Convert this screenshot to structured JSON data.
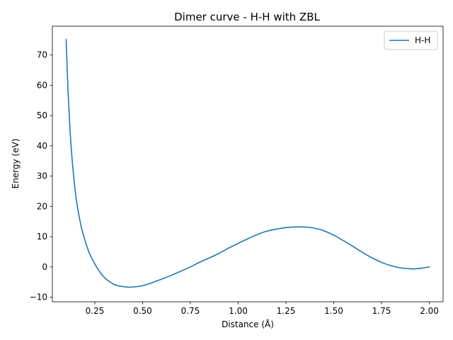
{
  "chart_data": {
    "type": "line",
    "title": "Dimer curve - H-H with ZBL",
    "xlabel": "Distance (Å)",
    "ylabel": "Energy (eV)",
    "xlim": [
      0.028,
      2.072
    ],
    "ylim": [
      -11.5,
      79.5
    ],
    "xticks": [
      0.25,
      0.5,
      0.75,
      1.0,
      1.25,
      1.5,
      1.75,
      2.0
    ],
    "xtick_labels": [
      "0.25",
      "0.50",
      "0.75",
      "1.00",
      "1.25",
      "1.50",
      "1.75",
      "2.00"
    ],
    "yticks": [
      -10,
      0,
      10,
      20,
      30,
      40,
      50,
      60,
      70
    ],
    "ytick_labels": [
      "−10",
      "0",
      "10",
      "20",
      "30",
      "40",
      "50",
      "60",
      "70"
    ],
    "grid": false,
    "legend": "top-right",
    "series": [
      {
        "name": "H-H",
        "color": "#1f77b4",
        "x": [
          0.1,
          0.11,
          0.12,
          0.13,
          0.14,
          0.15,
          0.16,
          0.18,
          0.2,
          0.22,
          0.25,
          0.28,
          0.3,
          0.33,
          0.36,
          0.4,
          0.43,
          0.47,
          0.5,
          0.55,
          0.6,
          0.65,
          0.7,
          0.75,
          0.8,
          0.85,
          0.9,
          0.95,
          1.0,
          1.05,
          1.1,
          1.15,
          1.2,
          1.25,
          1.3,
          1.34,
          1.38,
          1.42,
          1.45,
          1.5,
          1.55,
          1.6,
          1.65,
          1.7,
          1.75,
          1.8,
          1.85,
          1.9,
          1.93,
          1.96,
          2.0
        ],
        "y": [
          75.2,
          58.0,
          45.5,
          36.5,
          29.5,
          23.8,
          19.5,
          13.0,
          8.5,
          4.8,
          1.0,
          -2.0,
          -3.5,
          -5.0,
          -6.0,
          -6.5,
          -6.7,
          -6.5,
          -6.2,
          -5.2,
          -4.0,
          -2.8,
          -1.4,
          0.0,
          1.6,
          3.0,
          4.5,
          6.2,
          7.8,
          9.3,
          10.7,
          11.8,
          12.5,
          13.0,
          13.2,
          13.2,
          13.0,
          12.5,
          11.9,
          10.5,
          8.7,
          6.8,
          4.8,
          3.0,
          1.5,
          0.4,
          -0.3,
          -0.6,
          -0.6,
          -0.4,
          0.0
        ]
      }
    ]
  }
}
